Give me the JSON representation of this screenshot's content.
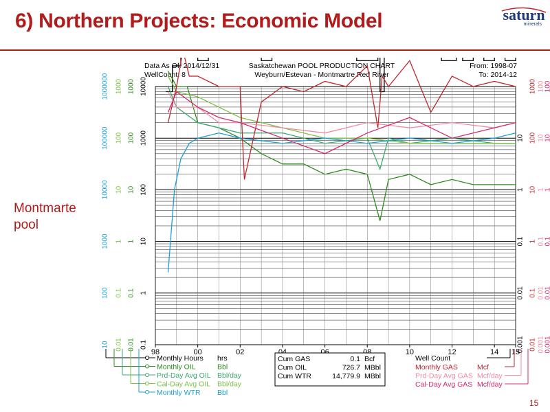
{
  "slide": {
    "title": "6) Northern Projects: Economic Model",
    "side_label_line1": "Montmarte",
    "side_label_line2": "pool",
    "page_number": "15",
    "logo_text": "saturn",
    "logo_sub": "minerals"
  },
  "chart_data": {
    "type": "line",
    "title": "Saskatchewan POOL PRODUCTION CHART",
    "subtitle": "Weyburn/Estevan - Montmartre Red River",
    "header_left_line1": "Data As Of: 2014/12/31",
    "header_left_line2": "WellCount: 8",
    "header_right_line1": "From: 1998-07",
    "header_right_line2": "To: 2014-12",
    "x_ticks": [
      "98",
      "00",
      "02",
      "04",
      "06",
      "08",
      "10",
      "12",
      "14",
      "15"
    ],
    "xlim": [
      1998.0,
      2015.0
    ],
    "y_log_scale": true,
    "grid": true,
    "left_axes": [
      {
        "color": "#1a9fd6",
        "ticks": [
          "10",
          "100",
          "1000",
          "10000",
          "100000",
          "1000000"
        ]
      },
      {
        "color": "#7cc243",
        "ticks": [
          "0.01",
          "0.1",
          "1",
          "10",
          "100",
          "1000"
        ]
      },
      {
        "color": "#2e8b1e",
        "ticks": [
          "0.01",
          "0.1",
          "1",
          "10",
          "100",
          "1000"
        ]
      },
      {
        "color": "#000000",
        "ticks": [
          "0.1",
          "1",
          "10",
          "100",
          "1000",
          "10000"
        ]
      }
    ],
    "right_axes": [
      {
        "color": "#000000",
        "ticks": [
          "0.001",
          "0.01",
          "0.1",
          "1",
          "10"
        ]
      },
      {
        "color": "#c0262c",
        "ticks": [
          "0.01",
          "0.1",
          "1",
          "10",
          "100",
          "1000"
        ]
      },
      {
        "color": "#f08aa0",
        "ticks": [
          "0.001",
          "0.01",
          "0.1",
          "1",
          "10",
          "100"
        ]
      },
      {
        "color": "#d6286e",
        "ticks": [
          "0.001",
          "0.01",
          "0.1",
          "1",
          "10",
          "100"
        ]
      }
    ],
    "series": [
      {
        "name": "Monthly Hours",
        "unit": "hrs",
        "color": "#000000",
        "style": "step",
        "x": [
          1998.5,
          1998.8,
          1999.2,
          2000.0,
          2000.5,
          2001.0,
          2003.0,
          2003.5,
          2004.0,
          2007.0,
          2007.5,
          2008.5,
          2008.6,
          2008.8,
          2010.0,
          2011.5,
          2012.2,
          2012.5,
          2013.0,
          2013.5,
          2014.0,
          2014.5,
          2015.0
        ],
        "y": [
          0.9,
          1.4,
          1.6,
          1.5,
          1.6,
          1.6,
          1.5,
          1.6,
          1.6,
          1.6,
          1.5,
          1.6,
          0.9,
          1.6,
          1.6,
          1.5,
          1.6,
          1.5,
          1.6,
          1.5,
          1.6,
          1.5,
          1.6
        ]
      },
      {
        "name": "Monthly OIL",
        "unit": "Bbl",
        "color": "#2e8b1e",
        "x": [
          1998.6,
          1999.0,
          1999.5,
          2000.0,
          2001.0,
          2002.0,
          2003.0,
          2004.0,
          2005.0,
          2006.0,
          2007.0,
          2008.0,
          2008.6,
          2009.0,
          2010.0,
          2011.0,
          2012.0,
          2013.0,
          2014.0,
          2015.0
        ],
        "y": [
          1.3,
          1.0,
          1.0,
          0.3,
          0.2,
          0.0,
          -0.3,
          -0.5,
          -0.5,
          -0.7,
          -0.6,
          -0.7,
          -1.6,
          -0.8,
          -0.7,
          -0.9,
          -0.8,
          -0.9,
          -0.9,
          -0.9
        ]
      },
      {
        "name": "Prd-Day Avg OIL",
        "unit": "Bbl/day",
        "color": "#3aaa70",
        "x": [
          1998.6,
          1999.0,
          2000.0,
          2002.0,
          2004.0,
          2006.0,
          2008.0,
          2008.6,
          2009.0,
          2010.0,
          2012.0,
          2014.0,
          2015.0
        ],
        "y": [
          1.0,
          0.6,
          0.3,
          0.1,
          0.1,
          -0.1,
          0.0,
          -0.6,
          0.0,
          -0.1,
          0.0,
          -0.1,
          -0.1
        ]
      },
      {
        "name": "Cal-Day Avg OIL",
        "unit": "Bbl/day",
        "color": "#7cc243",
        "x": [
          1998.6,
          1999.0,
          2000.0,
          2001.0,
          2002.0,
          2004.0,
          2006.0,
          2008.0,
          2010.0,
          2012.0,
          2014.0,
          2015.0
        ],
        "y": [
          1.2,
          0.9,
          0.8,
          0.6,
          0.4,
          0.2,
          0.0,
          0.0,
          -0.1,
          -0.1,
          -0.1,
          -0.1
        ]
      },
      {
        "name": "Monthly WTR",
        "unit": "Bbl",
        "color": "#1a9fd6",
        "x": [
          1998.6,
          1998.9,
          1999.2,
          1999.6,
          2000.0,
          2001.0,
          2002.0,
          2004.0,
          2006.0,
          2008.0,
          2010.0,
          2012.0,
          2014.0,
          2015.0
        ],
        "y": [
          -2.6,
          -1.0,
          -0.4,
          -0.1,
          0.0,
          0.1,
          0.0,
          -0.1,
          0.0,
          -0.1,
          0.0,
          -0.1,
          0.0,
          0.1
        ]
      },
      {
        "name": "Monthly GAS",
        "unit": "Mcf",
        "color": "#c0262c",
        "x": [
          1998.6,
          1999.0,
          1999.3,
          1999.6,
          2000.0,
          2001.0,
          2002.0,
          2002.2,
          2003.0,
          2004.0,
          2005.0,
          2006.0,
          2007.0,
          2008.0,
          2008.5,
          2008.7,
          2009.0,
          2010.0,
          2011.0,
          2012.0,
          2013.0,
          2014.0,
          2015.0
        ],
        "y": [
          0.3,
          1.0,
          1.7,
          1.2,
          1.2,
          1.0,
          1.0,
          -0.8,
          0.7,
          1.0,
          0.9,
          1.1,
          1.0,
          1.4,
          0.2,
          1.2,
          1.0,
          1.5,
          0.5,
          1.2,
          1.0,
          1.1,
          1.0
        ]
      },
      {
        "name": "Prd-Day Avg GAS",
        "unit": "Mcf/day",
        "color": "#f08aa0",
        "x": [
          1998.6,
          1999.0,
          2000.0,
          2001.0,
          2002.0,
          2004.0,
          2006.0,
          2008.0,
          2010.0,
          2012.0,
          2014.0,
          2015.0
        ],
        "y": [
          0.9,
          0.6,
          0.6,
          0.3,
          0.3,
          0.2,
          0.1,
          0.3,
          0.2,
          0.3,
          0.2,
          0.3
        ]
      },
      {
        "name": "Cal-Day Avg GAS",
        "unit": "Mcf/day",
        "color": "#d6286e",
        "x": [
          1998.6,
          1999.0,
          2000.0,
          2001.0,
          2002.0,
          2004.0,
          2006.0,
          2008.0,
          2010.0,
          2012.0,
          2014.0,
          2015.0
        ],
        "y": [
          0.5,
          0.9,
          0.6,
          0.4,
          0.3,
          0.0,
          -0.3,
          0.1,
          0.4,
          0.0,
          0.2,
          0.3
        ]
      }
    ],
    "well_count_label": "Well Count",
    "cumulatives": [
      {
        "label": "Cum GAS",
        "value": "0.1",
        "unit": "Bcf"
      },
      {
        "label": "Cum OIL",
        "value": "726.7",
        "unit": "MBbl"
      },
      {
        "label": "Cum WTR",
        "value": "14,779.9",
        "unit": "MBbl"
      }
    ]
  }
}
